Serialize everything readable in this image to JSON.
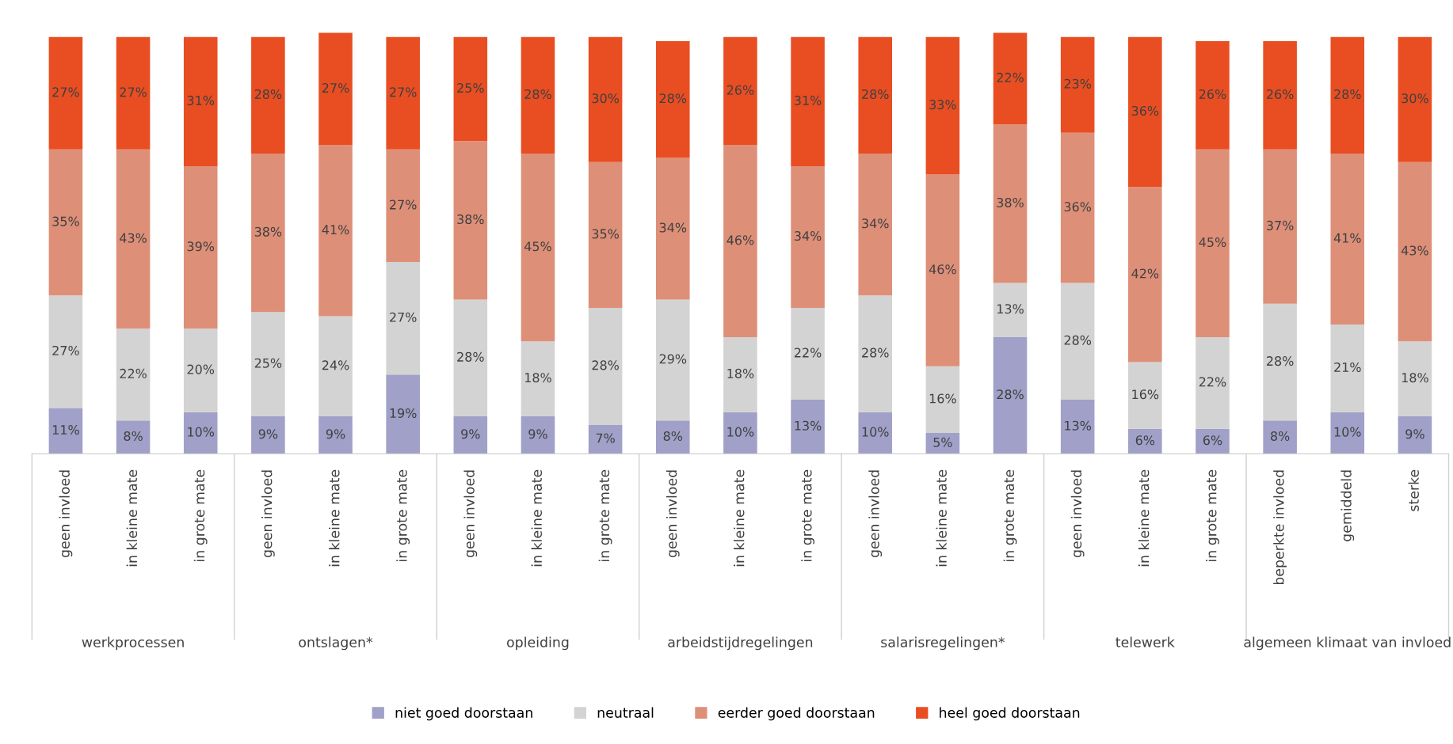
{
  "chart_data": {
    "type": "bar",
    "stacked": true,
    "legend": "bottom",
    "grid": false,
    "categories": [
      "geen invloed",
      "in kleine mate",
      "in grote mate",
      "geen invloed",
      "in kleine mate",
      "in grote mate",
      "geen invloed",
      "in kleine mate",
      "in grote mate",
      "geen invloed",
      "in kleine mate",
      "in grote mate",
      "geen invloed",
      "in kleine mate",
      "in grote mate",
      "geen invloed",
      "in kleine mate",
      "in grote mate",
      "beperkte invloed",
      "gemiddeld",
      "sterke"
    ],
    "annotations": [
      "werkprocessen",
      "ontslagen*",
      "opleiding",
      "arbeidstijdregelingen",
      "salarisregelingen*",
      "telewerk",
      "algemeen klimaat van invloed"
    ],
    "series": [
      {
        "name": "niet goed doorstaan",
        "color": "#a0a0c8",
        "values": [
          11,
          8,
          10,
          9,
          9,
          19,
          9,
          9,
          7,
          8,
          10,
          13,
          10,
          5,
          28,
          13,
          6,
          6,
          8,
          10,
          9
        ],
        "value_labels": [
          "11%",
          "8%",
          "10%",
          "9%",
          "9%",
          "19%",
          "9%",
          "9%",
          "7%",
          "8%",
          "10%",
          "13%",
          "10%",
          "5%",
          "28%",
          "13%",
          "6%",
          "6%",
          "8%",
          "10%",
          "9%"
        ]
      },
      {
        "name": "neutraal",
        "color": "#d3d3d3",
        "values": [
          27,
          22,
          20,
          25,
          24,
          27,
          28,
          18,
          28,
          29,
          18,
          22,
          28,
          16,
          13,
          28,
          16,
          22,
          28,
          21,
          18
        ],
        "value_labels": [
          "27%",
          "22%",
          "20%",
          "25%",
          "24%",
          "27%",
          "28%",
          "18%",
          "28%",
          "29%",
          "18%",
          "22%",
          "28%",
          "16%",
          "13%",
          "28%",
          "16%",
          "22%",
          "28%",
          "21%",
          "18%"
        ]
      },
      {
        "name": "eerder goed doorstaan",
        "color": "#de8f78",
        "values": [
          35,
          43,
          39,
          38,
          41,
          27,
          38,
          45,
          35,
          34,
          46,
          34,
          34,
          46,
          38,
          36,
          42,
          45,
          37,
          41,
          43
        ],
        "value_labels": [
          "35%",
          "43%",
          "39%",
          "38%",
          "41%",
          "27%",
          "38%",
          "45%",
          "35%",
          "34%",
          "46%",
          "34%",
          "34%",
          "46%",
          "38%",
          "36%",
          "42%",
          "45%",
          "37%",
          "41%",
          "43%"
        ]
      },
      {
        "name": "heel goed doorstaan",
        "color": "#e84e22",
        "values": [
          27,
          27,
          31,
          28,
          27,
          27,
          25,
          28,
          30,
          28,
          26,
          31,
          28,
          33,
          22,
          23,
          36,
          26,
          26,
          28,
          30
        ],
        "value_labels": [
          "27%",
          "27%",
          "31%",
          "28%",
          "27%",
          "27%",
          "25%",
          "28%",
          "30%",
          "28%",
          "26%",
          "31%",
          "28%",
          "33%",
          "22%",
          "23%",
          "36%",
          "26%",
          "26%",
          "28%",
          "30%"
        ]
      }
    ]
  }
}
